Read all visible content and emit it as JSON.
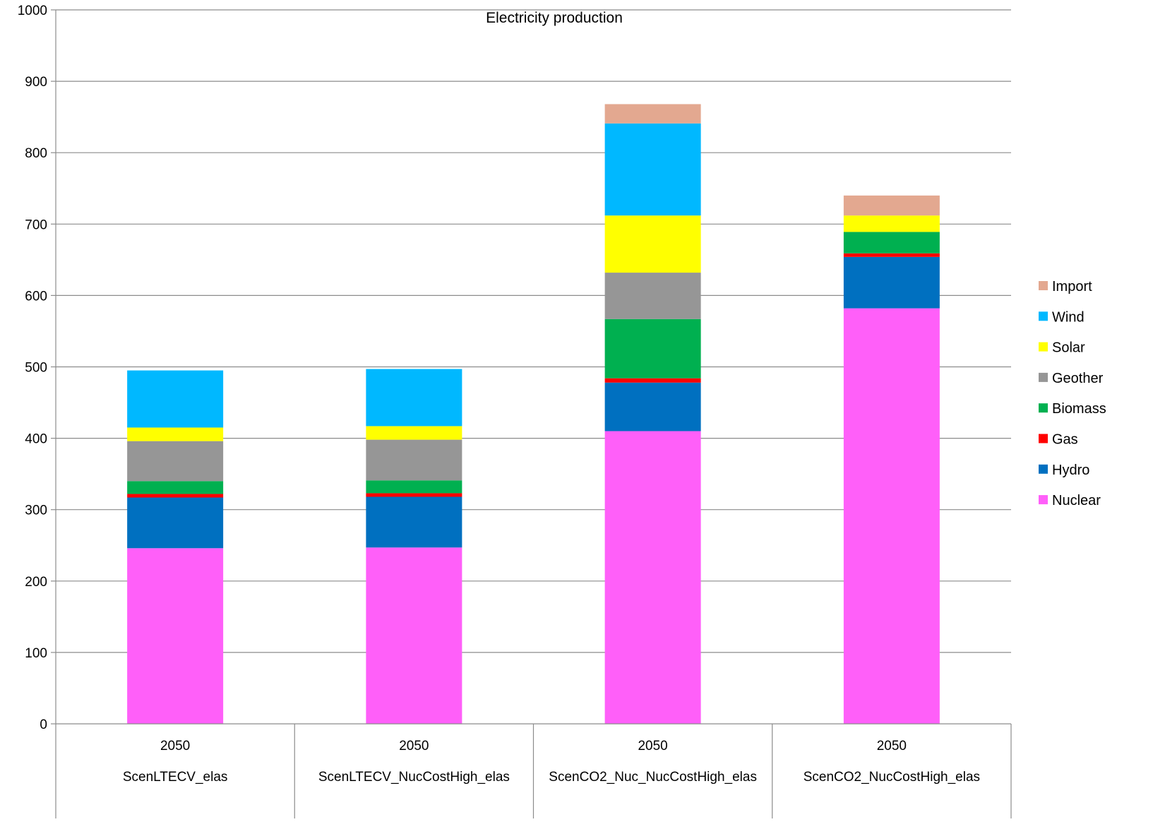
{
  "chart_data": {
    "type": "bar",
    "stacked": true,
    "title": "Electricity production",
    "xlabel": "",
    "ylabel": "",
    "ylim": [
      0,
      1000
    ],
    "yticks": [
      0,
      100,
      200,
      300,
      400,
      500,
      600,
      700,
      800,
      900,
      1000
    ],
    "grid": true,
    "legend_position": "right",
    "categories": [
      {
        "year": "2050",
        "scenario": "ScenLTECV_elas"
      },
      {
        "year": "2050",
        "scenario": "ScenLTECV_NucCostHigh_elas"
      },
      {
        "year": "2050",
        "scenario": "ScenCO2_Nuc_NucCostHigh_elas"
      },
      {
        "year": "2050",
        "scenario": "ScenCO2_NucCostHigh_elas"
      }
    ],
    "series": [
      {
        "name": "Nuclear",
        "color": "#FF5FF9",
        "values": [
          246,
          247,
          410,
          582
        ]
      },
      {
        "name": "Hydro",
        "color": "#0070C0",
        "values": [
          71,
          71,
          68,
          72
        ]
      },
      {
        "name": "Gas",
        "color": "#FF0000",
        "values": [
          5,
          5,
          6,
          5
        ]
      },
      {
        "name": "Biomass",
        "color": "#00B050",
        "values": [
          18,
          18,
          83,
          30
        ]
      },
      {
        "name": "Geother",
        "color": "#969696",
        "values": [
          56,
          57,
          65,
          0
        ]
      },
      {
        "name": "Solar",
        "color": "#FFFF00",
        "values": [
          19,
          19,
          80,
          23
        ]
      },
      {
        "name": "Wind",
        "color": "#00B8FF",
        "values": [
          80,
          80,
          129,
          0
        ]
      },
      {
        "name": "Import",
        "color": "#E3A890",
        "values": [
          0,
          0,
          27,
          28
        ]
      }
    ]
  }
}
